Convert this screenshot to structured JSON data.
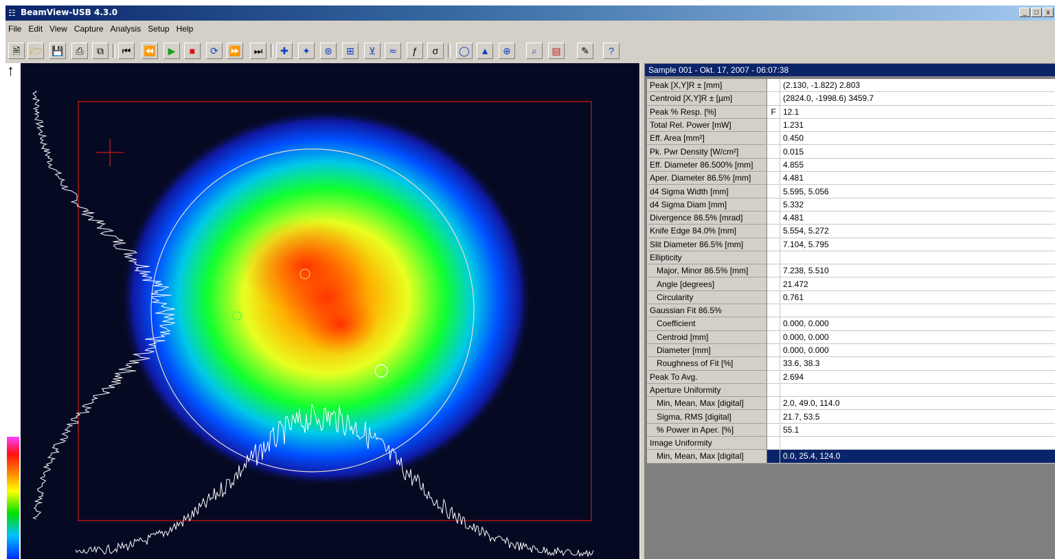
{
  "window": {
    "title": "BeamView-USB 4.3.0",
    "controls": [
      "_",
      "□",
      "x"
    ]
  },
  "menu": [
    "File",
    "Edit",
    "View",
    "Capture",
    "Analysis",
    "Setup",
    "Help"
  ],
  "toolbar": {
    "icons": [
      "new-icon",
      "open-icon",
      "save-icon",
      "print-icon",
      "copy-icon",
      "first-frame-icon",
      "previous-frame-icon",
      "play-icon",
      "stop-icon",
      "refresh-icon",
      "next-frame-icon",
      "last-frame-icon",
      "crosshair-icon",
      "centroid-icon",
      "profile-crosshair-icon",
      "cursor-crosshair-icon",
      "profile-fit-icon",
      "scan-icon",
      "function-icon",
      "sigma-icon",
      "aperture-icon",
      "3d-view-icon",
      "grid-icon",
      "zoom-icon",
      "palette-icon",
      "measure-icon",
      "help-icon"
    ]
  },
  "colors": {
    "title_gradient_start": "#0a246a",
    "title_gradient_end": "#a6caf0",
    "window_face": "#d4d0c8",
    "selection": "#0a246a",
    "beam_box": "#b01515",
    "aperture_circle": "#e8e0c8",
    "profile_trace": "#ffffff"
  },
  "sample_header": "Sample 001 - Okt. 17, 2007 - 06:07:38",
  "rows": [
    {
      "label": "Peak [X,Y]R ± [mm]",
      "value": "(2.130, -1.822) 2.803",
      "indent": false,
      "flag": ""
    },
    {
      "label": "Centroid [X,Y]R ± [µm]",
      "value": "(2824.0, -1998.6) 3459.7",
      "indent": false,
      "flag": ""
    },
    {
      "label": "Peak % Resp. [%]",
      "value": "12.1",
      "indent": false,
      "flag": "F"
    },
    {
      "label": "Total Rel. Power [mW]",
      "value": "1.231",
      "indent": false,
      "flag": ""
    },
    {
      "label": "Eff. Area [mm²]",
      "value": "0.450",
      "indent": false,
      "flag": ""
    },
    {
      "label": "Pk. Pwr Density [W/cm²]",
      "value": "0.015",
      "indent": false,
      "flag": ""
    },
    {
      "label": "Eff. Diameter 86.500% [mm]",
      "value": "4.855",
      "indent": false,
      "flag": ""
    },
    {
      "label": "Aper. Diameter 86.5% [mm]",
      "value": "4.481",
      "indent": false,
      "flag": ""
    },
    {
      "label": "d4 Sigma Width [mm]",
      "value": "5.595, 5.056",
      "indent": false,
      "flag": ""
    },
    {
      "label": "d4 Sigma Diam [mm]",
      "value": "5.332",
      "indent": false,
      "flag": ""
    },
    {
      "label": "Divergence 86.5% [mrad]",
      "value": "4.481",
      "indent": false,
      "flag": ""
    },
    {
      "label": "Knife Edge 84.0% [mm]",
      "value": "5.554, 5.272",
      "indent": false,
      "flag": ""
    },
    {
      "label": "Slit Diameter 86.5% [mm]",
      "value": "7.104, 5.795",
      "indent": false,
      "flag": ""
    },
    {
      "label": "Ellipticity",
      "value": "",
      "indent": false,
      "flag": ""
    },
    {
      "label": "Major, Minor 86.5% [mm]",
      "value": "7.238, 5.510",
      "indent": true,
      "flag": ""
    },
    {
      "label": "Angle [degrees]",
      "value": "21.472",
      "indent": true,
      "flag": ""
    },
    {
      "label": "Circularity",
      "value": "0.761",
      "indent": true,
      "flag": ""
    },
    {
      "label": "Gaussian Fit 86.5%",
      "value": "",
      "indent": false,
      "flag": ""
    },
    {
      "label": "Coefficient",
      "value": "0.000, 0.000",
      "indent": true,
      "flag": ""
    },
    {
      "label": "Centroid [mm]",
      "value": "0.000, 0.000",
      "indent": true,
      "flag": ""
    },
    {
      "label": "Diameter [mm]",
      "value": "0.000, 0.000",
      "indent": true,
      "flag": ""
    },
    {
      "label": "Roughness of Fit [%]",
      "value": "33.6, 38.3",
      "indent": true,
      "flag": ""
    },
    {
      "label": "Peak To Avg.",
      "value": "2.694",
      "indent": false,
      "flag": ""
    },
    {
      "label": "Aperture Uniformity",
      "value": "",
      "indent": false,
      "flag": ""
    },
    {
      "label": "Min, Mean, Max [digital]",
      "value": "2.0, 49.0, 114.0",
      "indent": true,
      "flag": ""
    },
    {
      "label": "Sigma, RMS [digital]",
      "value": "21.7, 53.5",
      "indent": true,
      "flag": ""
    },
    {
      "label": "% Power in Aper. [%]",
      "value": "55.1",
      "indent": true,
      "flag": ""
    },
    {
      "label": "Image Uniformity",
      "value": "",
      "indent": false,
      "flag": ""
    },
    {
      "label": "Min, Mean, Max [digital]",
      "value": "0.0, 25.4, 124.0",
      "indent": true,
      "flag": "",
      "selected": true
    }
  ]
}
